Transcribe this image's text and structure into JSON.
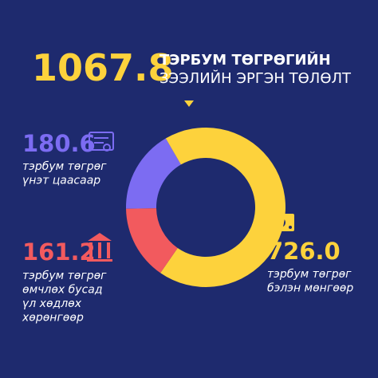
{
  "chart_data": {
    "type": "donut",
    "total": 1067.8,
    "title_lines": [
      "ТЭРБУМ ТӨГРӨГИЙН",
      "ЗЭЭЛИЙН ЭРГЭН ТӨЛӨЛТ"
    ],
    "values": [
      180.6,
      726.0,
      161.2
    ],
    "value_labels": [
      "180.6",
      "726.0",
      "161.2"
    ],
    "colors": [
      "#7c6cf2",
      "#fdd23c",
      "#f25a5e"
    ],
    "label_lines": [
      [
        "тэрбум төгрөг",
        "үнэт цаасаар"
      ],
      [
        "тэрбум төгрөг",
        "бэлэн мөнгөөр"
      ],
      [
        "тэрбум төгрөг",
        "өмчлөх бусад",
        "үл хөдлөх",
        "хөрөнгөөр"
      ]
    ]
  }
}
